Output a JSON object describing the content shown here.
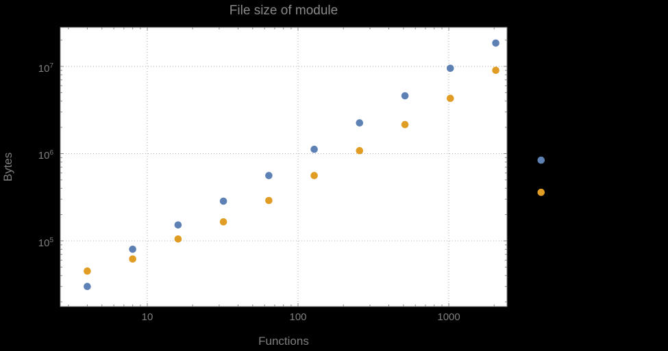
{
  "page": {
    "background_color": "#000000",
    "panel_color": "#ffffff"
  },
  "style": {
    "frame_color": "#848484",
    "grid_color": "#a8a8a8",
    "title_color": "#8a8a8a",
    "label_color": "#7f7f7f",
    "series_blue": "#5E81B5",
    "series_orange": "#E19C24"
  },
  "chart_data": {
    "type": "scatter",
    "title": "File size of module",
    "xlabel": "Functions",
    "ylabel": "Bytes",
    "x_scale": "log",
    "y_scale": "log",
    "grid": "dotted",
    "legend": "none",
    "x_ticks": [
      10,
      100,
      1000
    ],
    "x_tick_labels": [
      "10",
      "100",
      "1000"
    ],
    "y_ticks": [
      100000,
      1000000,
      10000000
    ],
    "y_tick_exponents": [
      5,
      6,
      7
    ],
    "y_tick_base": "10",
    "x_range_log": [
      0.423,
      3.386
    ],
    "y_range_log": [
      4.247,
      7.447
    ],
    "series": [
      {
        "name": "blue",
        "color": "#5E81B5",
        "x": [
          4,
          8,
          16,
          32,
          64,
          128,
          256,
          512,
          1024,
          2048,
          4096
        ],
        "y": [
          30000,
          80000,
          152000,
          285000,
          560000,
          1120000,
          2250000,
          4600000,
          9500000,
          18500000,
          840000
        ]
      },
      {
        "name": "orange",
        "color": "#E19C24",
        "x": [
          4,
          8,
          16,
          32,
          64,
          128,
          256,
          512,
          1024,
          2048,
          4096
        ],
        "y": [
          45000,
          62000,
          105000,
          165000,
          290000,
          560000,
          1080000,
          2150000,
          4300000,
          9000000,
          360000
        ]
      }
    ]
  }
}
